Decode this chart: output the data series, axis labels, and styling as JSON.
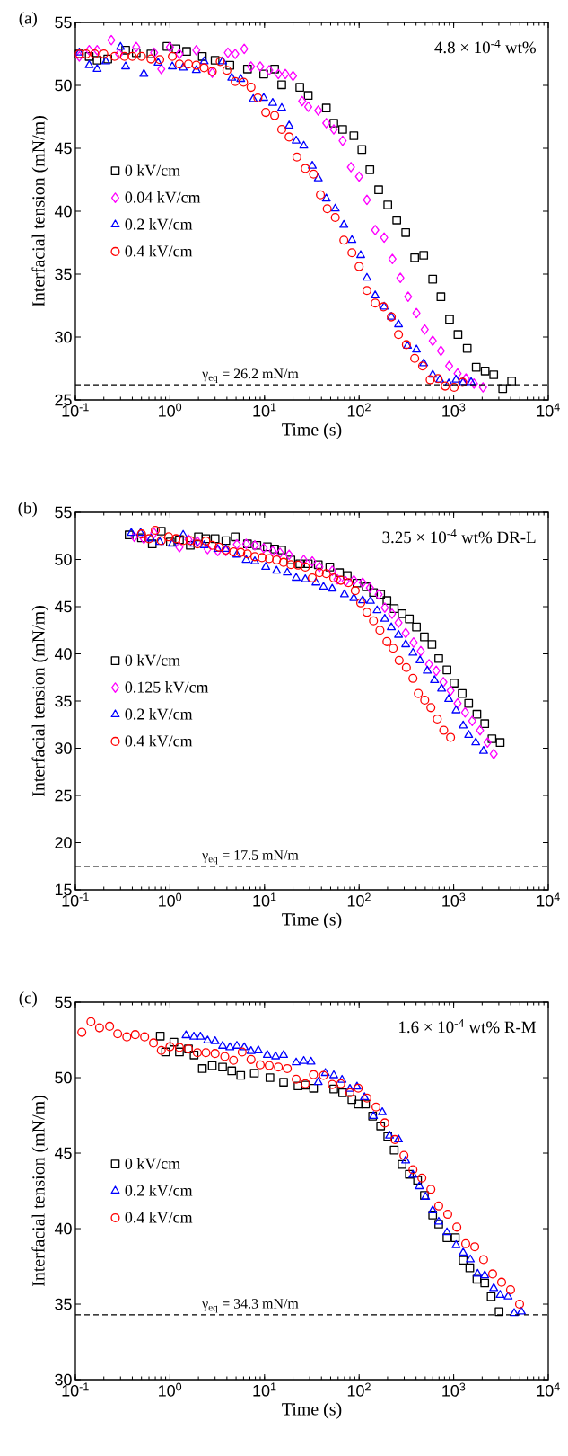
{
  "chart_data": [
    {
      "type": "scatter",
      "title": "(a)",
      "xlabel": "Time (s)",
      "ylabel": "Interfacial tension (mN/m)",
      "annotations": [
        "4.8 × 10$^{-4}$ wt%"
      ],
      "log": "x",
      "legend": "left",
      "grid": false,
      "xlim": [
        0.1,
        10000
      ],
      "ylim": [
        25,
        55
      ],
      "xticks": [
        {
          "value": 0.1,
          "label": "10$^{-1}$"
        },
        {
          "value": 1,
          "label": "10$^{0}$"
        },
        {
          "value": 10,
          "label": "10$^{1}$"
        },
        {
          "value": 100,
          "label": "10$^{2}$"
        },
        {
          "value": 1000,
          "label": "10$^{3}$"
        },
        {
          "value": 10000,
          "label": "10$^{4}$"
        }
      ],
      "yticks": [
        25,
        30,
        35,
        40,
        45,
        50,
        55
      ],
      "ref_lines": [
        {
          "axis": "y",
          "value": 26.2,
          "label": "γ$_{eq}$ = 26.2 mN/m",
          "line_style": "dashed",
          "color": "#000000"
        }
      ],
      "series": [
        {
          "name": "0 kV/cm",
          "color": "#000000",
          "marker": "square",
          "x": [
            0.11,
            0.14,
            0.17,
            0.22,
            0.34,
            0.44,
            0.63,
            0.93,
            1.16,
            1.5,
            2.2,
            3.0,
            4.3,
            6.6,
            9.8,
            12.8,
            15.2,
            23.6,
            29,
            45,
            54,
            67,
            88,
            107,
            130,
            161,
            201,
            250,
            311,
            387,
            482,
            600,
            733,
            904,
            1110,
            1390,
            1730,
            2150,
            2650,
            3300,
            4100
          ],
          "values": [
            52.5,
            52.3,
            52.0,
            52.1,
            52.8,
            52.6,
            52.5,
            53.1,
            52.9,
            52.7,
            52.3,
            52.0,
            51.6,
            51.3,
            50.9,
            51.3,
            50.05,
            49.85,
            49.2,
            48.2,
            47.0,
            46.5,
            46.0,
            44.9,
            43.3,
            41.7,
            40.5,
            39.3,
            38.3,
            36.3,
            36.5,
            34.6,
            33.2,
            31.4,
            30.2,
            29.1,
            27.6,
            27.3,
            27.0,
            25.9,
            26.5
          ]
        },
        {
          "name": "0.04 kV/cm",
          "color": "#ff00ff",
          "marker": "diamond",
          "x": [
            0.11,
            0.14,
            0.17,
            0.24,
            0.29,
            0.44,
            0.68,
            0.81,
            1.0,
            1.26,
            1.9,
            2.8,
            4.1,
            4.9,
            6.1,
            7.2,
            9.0,
            11.2,
            14,
            16.6,
            20,
            25,
            29,
            37,
            45,
            54,
            67,
            82,
            100,
            121,
            148,
            184,
            225,
            273,
            330,
            404,
            494,
            600,
            733,
            896,
            1100,
            1350,
            1640,
            2040
          ],
          "values": [
            52.3,
            52.8,
            52.8,
            53.6,
            52.5,
            53.05,
            52.6,
            51.3,
            53.05,
            52.5,
            52.8,
            51.0,
            52.6,
            52.5,
            52.9,
            51.5,
            51.5,
            51.2,
            50.9,
            50.9,
            50.75,
            48.75,
            48.3,
            48.0,
            47.0,
            46.5,
            45.6,
            43.5,
            42.75,
            40.9,
            38.5,
            37.9,
            36.2,
            34.7,
            33.2,
            31.9,
            30.6,
            29.7,
            28.9,
            27.7,
            27.1,
            26.7,
            26.3,
            26.0
          ]
        },
        {
          "name": "0.2 kV/cm",
          "color": "#0000ff",
          "marker": "triangle",
          "x": [
            0.11,
            0.14,
            0.17,
            0.21,
            0.3,
            0.34,
            0.53,
            0.75,
            1.06,
            1.38,
            1.9,
            2.3,
            3.6,
            4.5,
            5.6,
            7.6,
            9.8,
            12.2,
            15.2,
            18.2,
            21.6,
            26,
            32,
            37,
            45,
            56,
            69,
            84,
            104,
            121,
            148,
            184,
            219,
            261,
            325,
            404,
            482,
            600,
            713,
            887,
            1060,
            1260,
            1530
          ],
          "values": [
            52.6,
            51.6,
            51.3,
            51.9,
            53.05,
            51.5,
            50.9,
            51.8,
            51.5,
            51.4,
            51.2,
            51.9,
            51.9,
            50.6,
            50.5,
            48.9,
            49.0,
            48.6,
            48.2,
            46.8,
            45.6,
            45.2,
            43.6,
            42.6,
            41.0,
            40.2,
            38.9,
            37.7,
            36.5,
            34.7,
            33.3,
            32.4,
            31.6,
            31.0,
            29.3,
            29.0,
            27.9,
            27.0,
            26.6,
            26.3,
            26.6,
            26.4,
            26.4
          ]
        },
        {
          "name": "0.4 kV/cm",
          "color": "#ff0000",
          "marker": "circle",
          "x": [
            0.11,
            0.13,
            0.16,
            0.2,
            0.26,
            0.33,
            0.4,
            0.5,
            0.63,
            0.78,
            1.06,
            1.26,
            1.57,
            1.9,
            2.3,
            2.8,
            3.4,
            4.0,
            4.9,
            6.0,
            7.2,
            8.5,
            10.3,
            12.8,
            15.2,
            18.2,
            22,
            27,
            33,
            39,
            46,
            56,
            69,
            84,
            100,
            121,
            148,
            181,
            219,
            261,
            316,
            387,
            469,
            564,
            683,
            813,
            1010,
            1240
          ],
          "values": [
            52.5,
            52.5,
            52.5,
            52.5,
            52.3,
            52.3,
            52.3,
            52.3,
            52.1,
            52.05,
            52.3,
            51.7,
            51.7,
            51.6,
            51.4,
            51.1,
            51.9,
            51.2,
            50.3,
            50.25,
            49.85,
            49.0,
            47.85,
            47.6,
            46.5,
            45.9,
            44.3,
            43.4,
            42.95,
            41.3,
            40.2,
            39.5,
            37.7,
            36.7,
            35.6,
            33.7,
            32.7,
            32.4,
            31.6,
            30.2,
            29.4,
            28.3,
            27.7,
            26.6,
            26.7,
            26.1,
            26.0,
            26.4
          ]
        }
      ]
    },
    {
      "type": "scatter",
      "title": "(b)",
      "xlabel": "Time (s)",
      "ylabel": "Interfacial tension (mN/m)",
      "annotations": [
        "3.25 × 10$^{-4}$ wt% DR-L"
      ],
      "log": "x",
      "legend": "left",
      "grid": false,
      "xlim": [
        0.1,
        10000
      ],
      "ylim": [
        15,
        55
      ],
      "xticks": [
        {
          "value": 0.1,
          "label": "10$^{-1}$"
        },
        {
          "value": 1,
          "label": "10$^{0}$"
        },
        {
          "value": 10,
          "label": "10$^{1}$"
        },
        {
          "value": 100,
          "label": "10$^{2}$"
        },
        {
          "value": 1000,
          "label": "10$^{3}$"
        },
        {
          "value": 10000,
          "label": "10$^{4}$"
        }
      ],
      "yticks": [
        15,
        20,
        25,
        30,
        35,
        40,
        45,
        50,
        55
      ],
      "ref_lines": [
        {
          "axis": "y",
          "value": 17.5,
          "label": "γ$_{eq}$ = 17.5 mN/m",
          "line_style": "dashed",
          "color": "#000000"
        }
      ],
      "series": [
        {
          "name": "0 kV/cm",
          "color": "#000000",
          "marker": "square",
          "x": [
            0.37,
            0.5,
            0.65,
            0.81,
            1.01,
            1.26,
            1.64,
            2.0,
            2.4,
            3.0,
            3.9,
            4.9,
            6.6,
            8.3,
            10.7,
            12.8,
            15.2,
            19,
            23.6,
            29,
            37,
            49,
            62,
            75,
            95,
            119,
            142,
            169,
            197,
            235,
            285,
            340,
            404,
            490,
            589,
            695,
            849,
            1010,
            1230,
            1440,
            1760,
            2130,
            2540,
            3100
          ],
          "values": [
            52.6,
            52.3,
            51.65,
            53.0,
            51.85,
            52.1,
            51.5,
            52.4,
            52.2,
            52.2,
            52.0,
            52.4,
            51.65,
            51.5,
            51.35,
            51.1,
            51.0,
            49.95,
            49.55,
            49.55,
            49.45,
            49.2,
            48.6,
            48.3,
            47.5,
            47.1,
            46.5,
            46.3,
            45.65,
            44.8,
            44.25,
            43.7,
            42.85,
            41.8,
            41.0,
            39.5,
            38.3,
            36.9,
            35.8,
            34.75,
            33.6,
            32.6,
            31.0,
            30.6
          ]
        },
        {
          "name": "0.125 kV/cm",
          "color": "#ff00ff",
          "marker": "diamond",
          "x": [
            0.42,
            0.53,
            0.68,
            1.26,
            1.57,
            1.95,
            2.5,
            3.2,
            3.9,
            5.1,
            6.4,
            7.9,
            9.8,
            12.2,
            14.6,
            18.2,
            26,
            32,
            38,
            52,
            59,
            72,
            88,
            109,
            130,
            161,
            187,
            223,
            261,
            311,
            377,
            449,
            549,
            654,
            778,
            927,
            1100,
            1320,
            1570,
            1900,
            2280,
            2650
          ],
          "values": [
            52.4,
            52.2,
            52.8,
            51.3,
            52.1,
            51.9,
            51.1,
            50.9,
            50.9,
            51.6,
            51.65,
            51.5,
            51.2,
            50.9,
            50.7,
            50.5,
            49.95,
            49.8,
            49.2,
            48.8,
            47.9,
            47.7,
            47.8,
            47.55,
            47.0,
            46.3,
            44.9,
            44.25,
            43.3,
            42.2,
            41.2,
            40.3,
            38.9,
            38.2,
            37.0,
            36.1,
            34.75,
            33.8,
            32.9,
            31.9,
            30.6,
            29.4
          ]
        },
        {
          "name": "0.2 kV/cm",
          "color": "#0000ff",
          "marker": "triangle",
          "x": [
            0.39,
            0.49,
            0.63,
            0.78,
            1.06,
            1.38,
            1.8,
            2.3,
            3.2,
            3.9,
            5.1,
            6.4,
            7.9,
            10.3,
            13.4,
            17.4,
            21.6,
            27,
            35,
            42,
            52,
            70,
            88,
            109,
            132,
            155,
            187,
            219,
            261,
            311,
            371,
            441,
            526,
            627,
            745,
            887,
            1060,
            1260,
            1440,
            1710,
            2070
          ],
          "values": [
            52.8,
            52.8,
            52.2,
            51.85,
            51.65,
            52.6,
            51.65,
            51.5,
            51.1,
            51.1,
            50.5,
            49.95,
            49.8,
            49.2,
            48.8,
            48.6,
            48.05,
            47.9,
            47.55,
            47.1,
            46.9,
            46.3,
            45.9,
            45.65,
            45.6,
            44.6,
            43.7,
            42.8,
            42.0,
            41.0,
            40.1,
            39.3,
            38.2,
            37.2,
            36.3,
            35.2,
            34.0,
            32.4,
            31.4,
            30.6,
            29.7
          ]
        },
        {
          "name": "0.4 kV/cm",
          "color": "#ff0000",
          "marker": "circle",
          "x": [
            0.5,
            0.6,
            0.7,
            0.81,
            0.97,
            1.16,
            1.38,
            1.64,
            1.95,
            2.4,
            2.8,
            3.3,
            3.9,
            4.7,
            5.6,
            6.6,
            7.9,
            9.4,
            11.2,
            13.4,
            15.9,
            19,
            22.6,
            27,
            32,
            38,
            45,
            54,
            64,
            77,
            91,
            104,
            121,
            142,
            166,
            197,
            229,
            265,
            316,
            371,
            423,
            494,
            574,
            671,
            785,
            927
          ],
          "values": [
            52.7,
            52.2,
            53.1,
            52.0,
            52.4,
            52.2,
            52.0,
            52.0,
            51.65,
            51.95,
            51.5,
            51.3,
            51.0,
            50.8,
            50.75,
            50.6,
            50.3,
            50.2,
            50.1,
            49.95,
            49.7,
            49.45,
            49.4,
            49.2,
            48.05,
            48.6,
            48.5,
            48.05,
            47.8,
            47.55,
            46.7,
            45.4,
            44.4,
            43.5,
            42.5,
            41.3,
            40.6,
            39.3,
            38.55,
            37.4,
            35.8,
            35.1,
            34.3,
            33.1,
            31.9,
            31.15
          ]
        }
      ]
    },
    {
      "type": "scatter",
      "title": "(c)",
      "xlabel": "Time (s)",
      "ylabel": "Interfacial tension (mN/m)",
      "annotations": [
        "1.6 × 10$^{-4}$ wt% R-M"
      ],
      "log": "x",
      "legend": "left",
      "grid": false,
      "xlim": [
        0.1,
        10000
      ],
      "ylim": [
        30,
        55
      ],
      "xticks": [
        {
          "value": 0.1,
          "label": "10$^{-1}$"
        },
        {
          "value": 1,
          "label": "10$^{0}$"
        },
        {
          "value": 10,
          "label": "10$^{1}$"
        },
        {
          "value": 100,
          "label": "10$^{2}$"
        },
        {
          "value": 1000,
          "label": "10$^{3}$"
        },
        {
          "value": 10000,
          "label": "10$^{4}$"
        }
      ],
      "yticks": [
        30,
        35,
        40,
        45,
        50,
        55
      ],
      "ref_lines": [
        {
          "axis": "y",
          "value": 34.3,
          "label": "γ$_{eq}$ = 34.3 mN/m",
          "line_style": "dashed",
          "color": "#000000"
        }
      ],
      "series": [
        {
          "name": "0 kV/cm",
          "color": "#000000",
          "marker": "square",
          "x": [
            0.79,
            0.9,
            1.1,
            1.26,
            1.57,
            1.8,
            2.2,
            2.8,
            3.6,
            4.5,
            5.6,
            7.8,
            11.4,
            15.9,
            22.6,
            27,
            33,
            54,
            67,
            84,
            98,
            117,
            139,
            169,
            201,
            235,
            285,
            340,
            415,
            490,
            600,
            695,
            849,
            1040,
            1260,
            1480,
            1760,
            2130,
            2490,
            3020
          ],
          "values": [
            52.75,
            51.7,
            52.35,
            51.7,
            51.9,
            51.5,
            50.6,
            50.8,
            50.7,
            50.45,
            50.15,
            50.3,
            50.0,
            49.7,
            49.45,
            49.5,
            49.3,
            49.25,
            49.0,
            48.55,
            48.25,
            48.25,
            47.45,
            46.8,
            46.1,
            45.2,
            44.25,
            43.6,
            43.2,
            42.2,
            40.9,
            40.3,
            39.4,
            39.4,
            37.9,
            37.4,
            36.65,
            36.4,
            35.5,
            34.5
          ]
        },
        {
          "name": "0.2 kV/cm",
          "color": "#0000ff",
          "marker": "triangle",
          "x": [
            1.48,
            1.79,
            2.1,
            2.5,
            3.0,
            3.6,
            4.3,
            5.1,
            6.1,
            7.2,
            8.6,
            10.7,
            13.1,
            15.9,
            21.6,
            26,
            31,
            37,
            44,
            54,
            66,
            80,
            95,
            114,
            142,
            176,
            210,
            261,
            311,
            371,
            434,
            504,
            600,
            695,
            849,
            1060,
            1260,
            1500,
            1790,
            2130,
            2650,
            3100,
            3760,
            4360,
            5190
          ],
          "values": [
            52.8,
            52.7,
            52.7,
            52.45,
            52.4,
            52.1,
            52.0,
            52.1,
            52.0,
            51.75,
            51.8,
            51.5,
            51.4,
            51.5,
            51.0,
            51.1,
            51.05,
            49.7,
            50.3,
            50.15,
            49.85,
            49.25,
            49.4,
            48.7,
            47.45,
            47.7,
            46.15,
            45.9,
            44.5,
            43.55,
            42.8,
            42.1,
            41.2,
            40.45,
            39.75,
            38.9,
            38.4,
            37.95,
            37.0,
            36.9,
            36.05,
            35.6,
            35.5,
            34.4,
            34.5
          ]
        },
        {
          "name": "0.4 kV/cm",
          "color": "#ff0000",
          "marker": "circle",
          "x": [
            0.117,
            0.146,
            0.18,
            0.23,
            0.28,
            0.35,
            0.43,
            0.54,
            0.67,
            0.81,
            1.0,
            1.26,
            1.57,
            1.95,
            2.4,
            3.0,
            3.8,
            4.7,
            5.8,
            7.2,
            9.0,
            11.2,
            14,
            17.4,
            21.6,
            27,
            33,
            42,
            52,
            64,
            80,
            98,
            121,
            151,
            187,
            239,
            298,
            371,
            461,
            574,
            695,
            865,
            1080,
            1340,
            1670,
            2070,
            2580,
            3210,
            3990,
            4970
          ],
          "values": [
            53.0,
            53.7,
            53.3,
            53.4,
            52.9,
            52.7,
            52.85,
            52.7,
            52.3,
            51.8,
            52.05,
            52.0,
            51.9,
            51.65,
            51.65,
            51.6,
            51.4,
            51.15,
            51.7,
            51.2,
            50.85,
            50.8,
            50.7,
            50.6,
            49.9,
            49.6,
            50.2,
            50.15,
            49.55,
            49.6,
            49.0,
            49.3,
            48.65,
            48.05,
            47.0,
            45.9,
            44.85,
            43.9,
            43.35,
            42.6,
            41.5,
            40.95,
            40.1,
            39.0,
            38.8,
            37.95,
            37.0,
            36.45,
            35.95,
            35.0
          ]
        }
      ]
    }
  ]
}
